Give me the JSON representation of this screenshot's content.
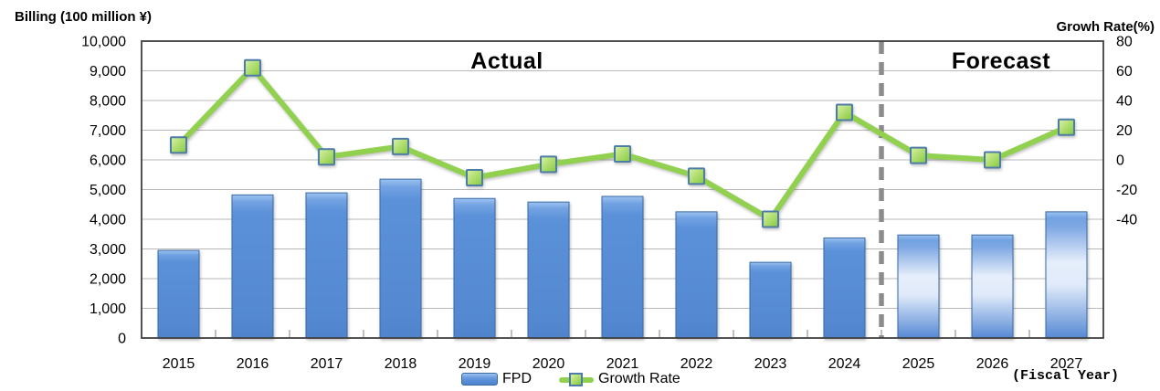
{
  "chart_data": {
    "type": "combo-bar-line",
    "categories": [
      "2015",
      "2016",
      "2017",
      "2018",
      "2019",
      "2020",
      "2021",
      "2022",
      "2023",
      "2024",
      "2025",
      "2026",
      "2027"
    ],
    "series": [
      {
        "name": "FPD",
        "type": "bar",
        "axis": "left",
        "values": [
          2950,
          4820,
          4890,
          5350,
          4700,
          4580,
          4770,
          4250,
          2550,
          3370,
          3470,
          3470,
          4250
        ]
      },
      {
        "name": "Growth Rate",
        "type": "line",
        "axis": "right",
        "values": [
          10,
          62,
          2,
          9,
          -12,
          -3,
          4,
          -11,
          -40,
          32,
          3,
          0,
          22
        ]
      }
    ],
    "left_axis": {
      "title": "Billing (100 million ¥)",
      "min": 0,
      "max": 10000,
      "tick_step": 1000,
      "tick_labels_top_to_bottom": [
        "10,000",
        "9,000",
        "8,000",
        "7,000",
        "6,000",
        "5,000",
        "4,000",
        "3,000",
        "2,000",
        "1,000",
        "0"
      ]
    },
    "right_axis": {
      "title": "Growh Rate(%)",
      "tick_labels_top_to_bottom": [
        "80",
        "60",
        "40",
        "20",
        "0",
        "-20",
        "-40"
      ],
      "value_at_top": 80,
      "value_per_gridline": 20
    },
    "sections": {
      "actual_label": "Actual",
      "forecast_label": "Forecast",
      "forecast_start_category": "2025",
      "divider_between": [
        "2024",
        "2025"
      ]
    },
    "x_axis_note": "(Fiscal Year)",
    "legend": [
      {
        "label": "FPD",
        "swatch": "bar-blue"
      },
      {
        "label": "Growth Rate",
        "swatch": "line-green-square-marker"
      }
    ],
    "colors": {
      "bar_blue": "#5B90D8",
      "bar_border": "#3A6BA5",
      "line_green": "#92D050",
      "marker_border": "#4E7CA9",
      "divider_gray": "#8C8C8C",
      "gridline": "#B8B8B8",
      "plot_border": "#3F3F3F"
    },
    "grid": true,
    "legend_position": "bottom-center"
  }
}
